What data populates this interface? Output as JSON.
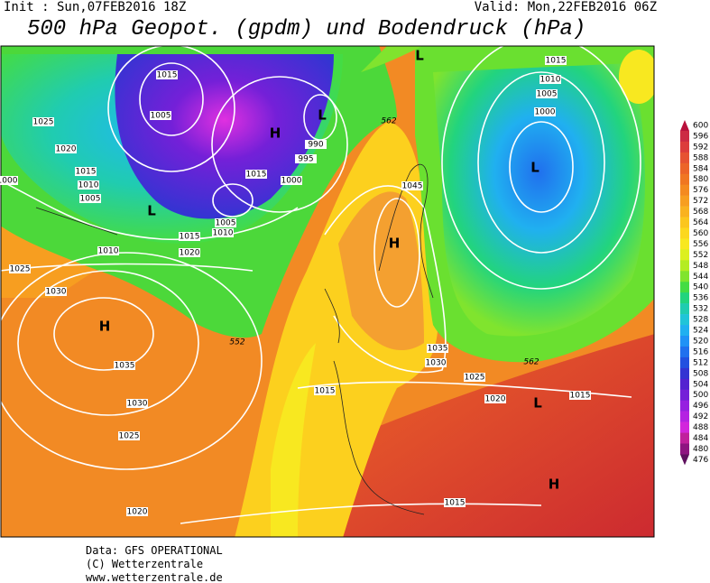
{
  "header": {
    "init": "Init : Sun,07FEB2016 18Z",
    "valid": "Valid: Mon,22FEB2016 06Z",
    "title": "500 hPa Geopot. (gpdm) und Bodendruck (hPa)"
  },
  "map": {
    "isobar_labels": [
      "1015",
      "1005",
      "1025",
      "1020",
      "1015",
      "1010",
      "1005",
      "1000",
      "1015",
      "1000",
      "995",
      "990",
      "1005",
      "1010",
      "1015",
      "1020",
      "1010",
      "1025",
      "1030",
      "1035",
      "1030",
      "1025",
      "1020",
      "1015",
      "1015",
      "1045",
      "1035",
      "1030",
      "1025",
      "1020",
      "1015",
      "1015",
      "1010",
      "1005",
      "1000"
    ],
    "geopotential_labels": [
      "562",
      "552",
      "562"
    ],
    "centers": [
      "L",
      "H",
      "L",
      "H",
      "H",
      "L",
      "L",
      "L",
      "H"
    ]
  },
  "colorbar": {
    "labels": [
      600,
      596,
      592,
      588,
      584,
      580,
      576,
      572,
      568,
      564,
      560,
      556,
      552,
      548,
      544,
      540,
      536,
      532,
      528,
      524,
      520,
      516,
      512,
      508,
      504,
      500,
      496,
      492,
      488,
      484,
      480,
      476
    ],
    "colors": [
      "#b8103c",
      "#cc2a44",
      "#dc3c3c",
      "#e65232",
      "#ec6428",
      "#f07622",
      "#f48a20",
      "#f79e20",
      "#f9b220",
      "#fbc61e",
      "#fcd81e",
      "#f8e820",
      "#dcf020",
      "#b4ec22",
      "#80e42e",
      "#44dc44",
      "#22d47e",
      "#20ccb0",
      "#20c4d8",
      "#20b0f0",
      "#2092f6",
      "#2070ee",
      "#2250e0",
      "#3434d2",
      "#5422d0",
      "#7420d8",
      "#9620e0",
      "#b422e2",
      "#d226dc",
      "#c0209c",
      "#8e1480",
      "#5e105e"
    ]
  },
  "footer": {
    "lines": [
      "Data: GFS OPERATIONAL",
      "(C) Wetterzentrale",
      "www.wetterzentrale.de"
    ]
  }
}
